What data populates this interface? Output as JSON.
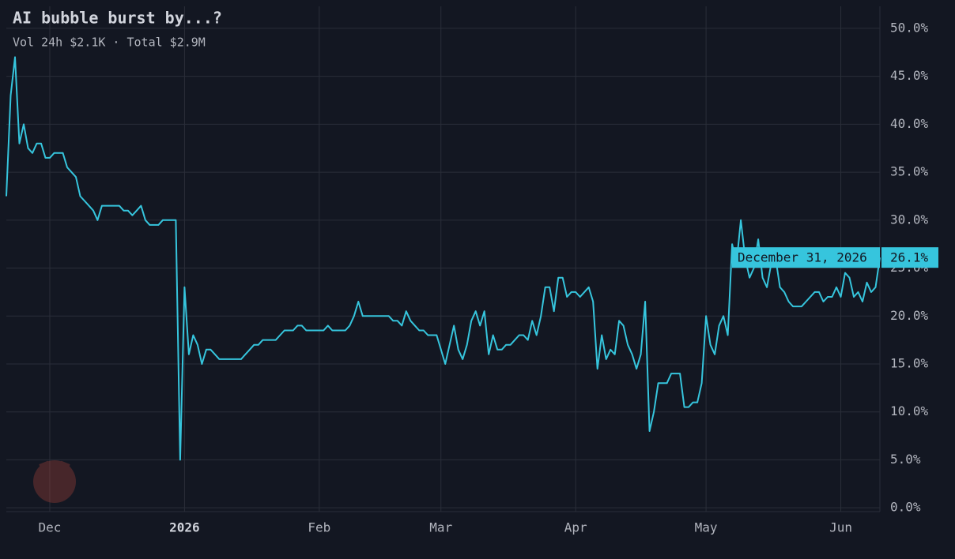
{
  "chart_data": {
    "type": "line",
    "title": "AI bubble burst by...?",
    "subtitle": "Vol 24h $2.1K · Total $2.9M",
    "color": "#36c5dd",
    "grid": true,
    "categories": [
      null,
      null,
      null,
      null,
      null,
      null,
      null,
      null,
      null,
      null,
      "Dec",
      null,
      null,
      null,
      null,
      null,
      null,
      null,
      null,
      null,
      null,
      null,
      null,
      null,
      null,
      null,
      null,
      null,
      null,
      null,
      null,
      null,
      null,
      null,
      null,
      null,
      null,
      null,
      null,
      null,
      null,
      "2026",
      null,
      null,
      null,
      null,
      null,
      null,
      null,
      null,
      null,
      null,
      null,
      null,
      null,
      null,
      null,
      null,
      null,
      null,
      null,
      null,
      null,
      null,
      null,
      null,
      null,
      null,
      null,
      null,
      null,
      null,
      "Feb",
      null,
      null,
      null,
      null,
      null,
      null,
      null,
      null,
      null,
      null,
      null,
      null,
      null,
      null,
      null,
      null,
      null,
      null,
      null,
      null,
      null,
      null,
      null,
      null,
      null,
      null,
      null,
      "Mar",
      null,
      null,
      null,
      null,
      null,
      null,
      null,
      null,
      null,
      null,
      null,
      null,
      null,
      null,
      null,
      null,
      null,
      null,
      null,
      null,
      null,
      null,
      null,
      null,
      null,
      null,
      null,
      null,
      null,
      null,
      "Apr",
      null,
      null,
      null,
      null,
      null,
      null,
      null,
      null,
      null,
      null,
      null,
      null,
      null,
      null,
      null,
      null,
      null,
      null,
      null,
      null,
      null,
      null,
      null,
      null,
      null,
      null,
      null,
      null,
      null,
      "May",
      null,
      null,
      null,
      null,
      null,
      null,
      null,
      null,
      null,
      null,
      null,
      null,
      null,
      null,
      null,
      null,
      null,
      null,
      null,
      null,
      null,
      null,
      null,
      null,
      null,
      null,
      null,
      null,
      null,
      null,
      "Jun",
      null,
      null,
      null,
      null,
      null,
      null,
      null,
      null,
      null
    ],
    "values": [
      32.5,
      43,
      47,
      38,
      40,
      37.5,
      37,
      38,
      38,
      36.5,
      36.5,
      37,
      37,
      37,
      35.5,
      35,
      34.5,
      32.5,
      32,
      31.5,
      31,
      30,
      31.5,
      31.5,
      31.5,
      31.5,
      31.5,
      31,
      31,
      30.5,
      31,
      31.5,
      30,
      29.5,
      29.5,
      29.5,
      30,
      30,
      30,
      30,
      5,
      23,
      16,
      18,
      17,
      15,
      16.5,
      16.5,
      16,
      15.5,
      15.5,
      15.5,
      15.5,
      15.5,
      15.5,
      16,
      16.5,
      17,
      17,
      17.5,
      17.5,
      17.5,
      17.5,
      18,
      18.5,
      18.5,
      18.5,
      19,
      19,
      18.5,
      18.5,
      18.5,
      18.5,
      18.5,
      19,
      18.5,
      18.5,
      18.5,
      18.5,
      19,
      20,
      21.5,
      20,
      20,
      20,
      20,
      20,
      20,
      20,
      19.5,
      19.5,
      19,
      20.5,
      19.5,
      19,
      18.5,
      18.5,
      18,
      18,
      18,
      16.5,
      15,
      17,
      19,
      16.5,
      15.5,
      17,
      19.5,
      20.5,
      19,
      20.5,
      16,
      18,
      16.5,
      16.5,
      17,
      17,
      17.5,
      18,
      18,
      17.5,
      19.5,
      18,
      20,
      23,
      23,
      20.5,
      24,
      24,
      22,
      22.5,
      22.5,
      22,
      22.5,
      23,
      21.5,
      14.5,
      18,
      15.5,
      16.5,
      16,
      19.5,
      19,
      17,
      16,
      14.5,
      16,
      21.5,
      8,
      10,
      13,
      13,
      13,
      14,
      14,
      14,
      10.5,
      10.5,
      11,
      11,
      13,
      20,
      17,
      16,
      19,
      20,
      18,
      27.5,
      25.5,
      30,
      26,
      24,
      25,
      28,
      24,
      23,
      25.5,
      26,
      23,
      22.5,
      21.5,
      21,
      21,
      21,
      21.5,
      22,
      22.5,
      22.5,
      21.5,
      22,
      22,
      23,
      22,
      24.5,
      24,
      22,
      22.5,
      21.5,
      23.5,
      22.5,
      23,
      26.1
    ],
    "ylim": [
      -0.4,
      52.3
    ],
    "yticks": [
      {
        "value": 0,
        "label": "0.0%"
      },
      {
        "value": 5,
        "label": "5.0%"
      },
      {
        "value": 10,
        "label": "10.0%"
      },
      {
        "value": 15,
        "label": "15.0%"
      },
      {
        "value": 20,
        "label": "20.0%"
      },
      {
        "value": 25,
        "label": "25.0%"
      },
      {
        "value": 30,
        "label": "30.0%"
      },
      {
        "value": 35,
        "label": "35.0%"
      },
      {
        "value": 40,
        "label": "40.0%"
      },
      {
        "value": 45,
        "label": "45.0%"
      },
      {
        "value": 50,
        "label": "50.0%"
      }
    ],
    "annotation": {
      "label": "December 31, 2026",
      "value": 26.1,
      "value_label": "26.1%"
    }
  }
}
